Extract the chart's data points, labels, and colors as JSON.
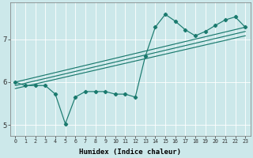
{
  "xlabel": "Humidex (Indice chaleur)",
  "bg_color": "#cce8ea",
  "line_color": "#1a7a6e",
  "grid_color": "#ffffff",
  "xlim": [
    -0.5,
    23.5
  ],
  "ylim": [
    4.75,
    7.85
  ],
  "yticks": [
    5,
    6,
    7
  ],
  "xticks": [
    0,
    1,
    2,
    3,
    4,
    5,
    6,
    7,
    8,
    9,
    10,
    11,
    12,
    13,
    14,
    15,
    16,
    17,
    18,
    19,
    20,
    21,
    22,
    23
  ],
  "series1_x": [
    0,
    1,
    2,
    3,
    4,
    5,
    6,
    7,
    8,
    9,
    10,
    11,
    12,
    13,
    14,
    15,
    16,
    17,
    18,
    19,
    20,
    21,
    22,
    23
  ],
  "series1_y": [
    6.0,
    5.92,
    5.92,
    5.92,
    5.72,
    5.03,
    5.65,
    5.78,
    5.78,
    5.78,
    5.72,
    5.72,
    5.65,
    6.6,
    7.28,
    7.58,
    7.42,
    7.22,
    7.08,
    7.18,
    7.32,
    7.45,
    7.52,
    7.28
  ],
  "series2_x": [
    0,
    23
  ],
  "series2_y": [
    6.0,
    7.28
  ],
  "series3_x": [
    0,
    23
  ],
  "series3_y": [
    5.92,
    7.18
  ],
  "series4_x": [
    0,
    23
  ],
  "series4_y": [
    5.85,
    7.08
  ],
  "xlabel_fontsize": 6.5,
  "tick_fontsize_x": 4.8,
  "tick_fontsize_y": 6.5
}
